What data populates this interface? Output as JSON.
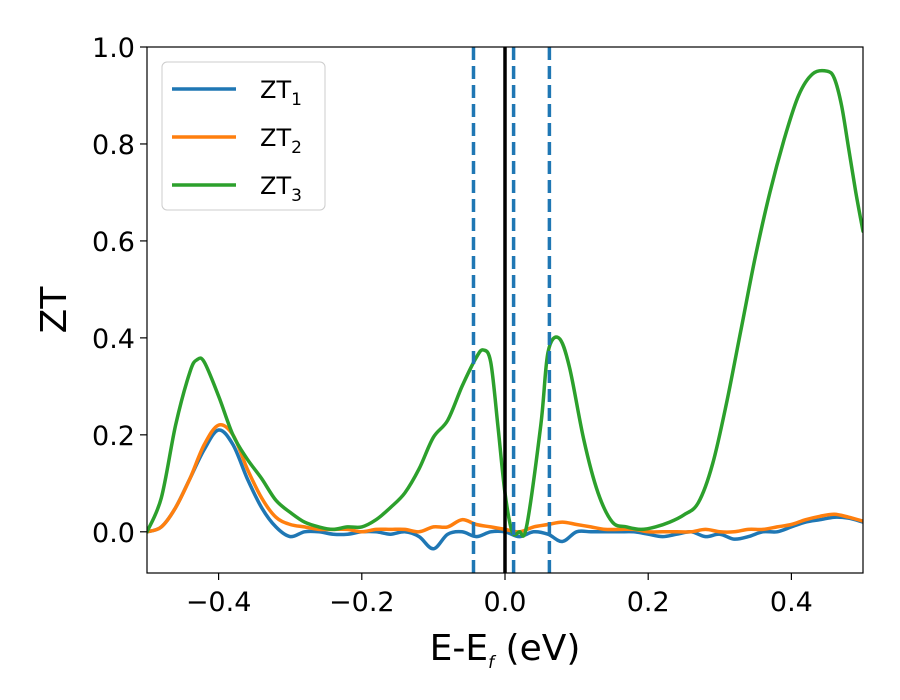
{
  "chart_data": {
    "type": "line",
    "xlabel": "E-E",
    "xlabel_sub": "f",
    "xlabel_unit": " (eV)",
    "ylabel": "ZT",
    "xlim": [
      -0.5,
      0.5
    ],
    "ylim": [
      -0.085,
      1.0
    ],
    "xticks": [
      -0.4,
      -0.2,
      0.0,
      0.2,
      0.4
    ],
    "xtick_labels": [
      "−0.4",
      "−0.2",
      "0.0",
      "0.2",
      "0.4"
    ],
    "yticks": [
      0.0,
      0.2,
      0.4,
      0.6,
      0.8,
      1.0
    ],
    "ytick_labels": [
      "0.0",
      "0.2",
      "0.4",
      "0.6",
      "0.8",
      "1.0"
    ],
    "grid": false,
    "legend_position": "top-left",
    "vlines": [
      {
        "x": -0.044,
        "style": "dashed",
        "color": "#1f77b4"
      },
      {
        "x": 0.0,
        "style": "solid",
        "color": "#000000"
      },
      {
        "x": 0.012,
        "style": "dashed",
        "color": "#1f77b4"
      },
      {
        "x": 0.062,
        "style": "dashed",
        "color": "#1f77b4"
      }
    ],
    "series": [
      {
        "name": "ZT",
        "name_sub": "1",
        "color": "#1f77b4",
        "x": [
          -0.5,
          -0.48,
          -0.46,
          -0.44,
          -0.42,
          -0.4,
          -0.38,
          -0.36,
          -0.34,
          -0.32,
          -0.3,
          -0.28,
          -0.26,
          -0.24,
          -0.22,
          -0.2,
          -0.18,
          -0.16,
          -0.14,
          -0.12,
          -0.1,
          -0.08,
          -0.06,
          -0.04,
          -0.02,
          0.0,
          0.02,
          0.04,
          0.06,
          0.08,
          0.1,
          0.12,
          0.14,
          0.16,
          0.18,
          0.2,
          0.22,
          0.24,
          0.26,
          0.28,
          0.3,
          0.32,
          0.34,
          0.36,
          0.38,
          0.4,
          0.42,
          0.44,
          0.46,
          0.48,
          0.5
        ],
        "y": [
          0.0,
          0.01,
          0.05,
          0.11,
          0.17,
          0.21,
          0.18,
          0.11,
          0.05,
          0.01,
          -0.01,
          0.0,
          0.0,
          -0.005,
          -0.005,
          0.0,
          0.0,
          -0.005,
          0.0,
          -0.01,
          -0.035,
          -0.005,
          0.0,
          -0.01,
          0.0,
          0.0,
          -0.01,
          0.0,
          -0.005,
          -0.02,
          0.0,
          0.0,
          0.0,
          0.0,
          0.0,
          -0.005,
          -0.01,
          -0.005,
          0.0,
          -0.01,
          -0.005,
          -0.015,
          -0.01,
          0.0,
          0.0,
          0.01,
          0.02,
          0.025,
          0.03,
          0.028,
          0.02
        ]
      },
      {
        "name": "ZT",
        "name_sub": "2",
        "color": "#ff7f0e",
        "x": [
          -0.5,
          -0.48,
          -0.46,
          -0.44,
          -0.42,
          -0.4,
          -0.38,
          -0.36,
          -0.34,
          -0.32,
          -0.3,
          -0.28,
          -0.26,
          -0.24,
          -0.22,
          -0.2,
          -0.18,
          -0.16,
          -0.14,
          -0.12,
          -0.1,
          -0.08,
          -0.06,
          -0.04,
          -0.02,
          0.0,
          0.02,
          0.04,
          0.06,
          0.08,
          0.1,
          0.12,
          0.14,
          0.16,
          0.18,
          0.2,
          0.22,
          0.24,
          0.26,
          0.28,
          0.3,
          0.32,
          0.34,
          0.36,
          0.38,
          0.4,
          0.42,
          0.44,
          0.46,
          0.48,
          0.5
        ],
        "y": [
          0.0,
          0.01,
          0.05,
          0.11,
          0.18,
          0.22,
          0.2,
          0.13,
          0.07,
          0.03,
          0.015,
          0.01,
          0.005,
          0.005,
          0.005,
          0.0,
          0.005,
          0.005,
          0.005,
          0.0,
          0.01,
          0.01,
          0.025,
          0.015,
          0.01,
          0.005,
          0.0,
          0.01,
          0.015,
          0.02,
          0.015,
          0.01,
          0.005,
          0.005,
          0.005,
          0.0,
          0.0,
          0.0,
          0.0,
          0.005,
          0.0,
          0.0,
          0.005,
          0.005,
          0.01,
          0.015,
          0.025,
          0.032,
          0.036,
          0.03,
          0.022
        ]
      },
      {
        "name": "ZT",
        "name_sub": "3",
        "color": "#2ca02c",
        "x": [
          -0.5,
          -0.48,
          -0.46,
          -0.44,
          -0.43,
          -0.42,
          -0.4,
          -0.38,
          -0.36,
          -0.34,
          -0.32,
          -0.3,
          -0.28,
          -0.26,
          -0.24,
          -0.22,
          -0.2,
          -0.18,
          -0.16,
          -0.14,
          -0.12,
          -0.1,
          -0.08,
          -0.06,
          -0.04,
          -0.03,
          -0.02,
          -0.01,
          0.0,
          0.01,
          0.02,
          0.03,
          0.05,
          0.06,
          0.075,
          0.09,
          0.11,
          0.13,
          0.15,
          0.17,
          0.19,
          0.21,
          0.23,
          0.25,
          0.27,
          0.29,
          0.31,
          0.33,
          0.35,
          0.37,
          0.39,
          0.41,
          0.43,
          0.45,
          0.46,
          0.47,
          0.48,
          0.49,
          0.5
        ],
        "y": [
          0.0,
          0.07,
          0.22,
          0.33,
          0.355,
          0.35,
          0.28,
          0.2,
          0.15,
          0.11,
          0.065,
          0.04,
          0.02,
          0.01,
          0.005,
          0.01,
          0.01,
          0.025,
          0.05,
          0.08,
          0.13,
          0.195,
          0.23,
          0.3,
          0.36,
          0.375,
          0.35,
          0.22,
          0.08,
          0.0,
          0.0,
          0.01,
          0.22,
          0.37,
          0.4,
          0.34,
          0.19,
          0.08,
          0.02,
          0.01,
          0.005,
          0.01,
          0.02,
          0.035,
          0.06,
          0.14,
          0.27,
          0.42,
          0.57,
          0.7,
          0.81,
          0.9,
          0.945,
          0.95,
          0.935,
          0.88,
          0.79,
          0.7,
          0.62
        ]
      }
    ]
  }
}
